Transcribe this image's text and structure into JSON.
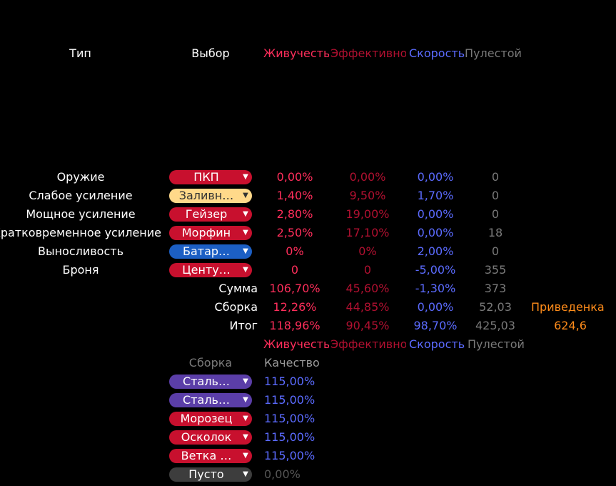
{
  "colors": {
    "red": "#ff2e5b",
    "darkred": "#b01030",
    "blue": "#5b6bff",
    "gray": "#7a7a7a",
    "orange": "#ff8c1a"
  },
  "header": {
    "col_type": "Тип",
    "col_choice": "Выбор",
    "col_vit": "Живучесть",
    "col_eff": "Эффективность",
    "col_speed": "Скорость",
    "col_empty": "Пулестой"
  },
  "rows": [
    {
      "name": "Оружие",
      "chip": "ПКП",
      "vit": "0,00%",
      "eff": "0,00%",
      "speed": "0,00%",
      "empty": "0"
    },
    {
      "name": "Слабое усиление",
      "chip": "Заливн…",
      "vit": "1,40%",
      "eff": "9,50%",
      "speed": "1,70%",
      "empty": "0"
    },
    {
      "name": "Мощное усиление",
      "chip": "Гейзер",
      "vit": "2,80%",
      "eff": "19,00%",
      "speed": "0,00%",
      "empty": "0"
    },
    {
      "name": "Кратковременное усиление",
      "chip": "Морфин",
      "vit": "2,50%",
      "eff": "17,10%",
      "speed": "0,00%",
      "empty": "18"
    },
    {
      "name": "Выносливость",
      "chip": "Батар…",
      "vit": "0%",
      "eff": "0%",
      "speed": "2,00%",
      "empty": "0"
    },
    {
      "name": "Броня",
      "chip": "Центу…",
      "vit": "0",
      "eff": "0",
      "speed": "-5,00%",
      "empty": "355"
    }
  ],
  "totals": [
    {
      "label": "Сумма",
      "vit": "106,70%",
      "eff": "45,60%",
      "speed": "-1,30%",
      "empty": "373"
    },
    {
      "label": "Сборка",
      "vit": "12,26%",
      "eff": "44,85%",
      "speed": "0,00%",
      "empty": "52,03"
    },
    {
      "label": "Итог",
      "vit": "118,96%",
      "eff": "90,45%",
      "speed": "98,70%",
      "empty": "425,03"
    }
  ],
  "reduced": {
    "label": "Приведенка",
    "value": "624,6"
  },
  "header2": {
    "col_vit": "Живучесть",
    "col_eff": "Эффективность",
    "col_speed": "Скорость",
    "col_empty": "Пулестой"
  },
  "build": {
    "col_build": "Сборка",
    "col_quality": "Качество",
    "items": [
      {
        "chip": "Сталь…",
        "quality": "115,00%"
      },
      {
        "chip": "Сталь…",
        "quality": "115,00%"
      },
      {
        "chip": "Морозец",
        "quality": "115,00%"
      },
      {
        "chip": "Осколок",
        "quality": "115,00%"
      },
      {
        "chip": "Ветка …",
        "quality": "115,00%"
      },
      {
        "chip": "Пусто",
        "quality": "0,00%"
      }
    ]
  }
}
